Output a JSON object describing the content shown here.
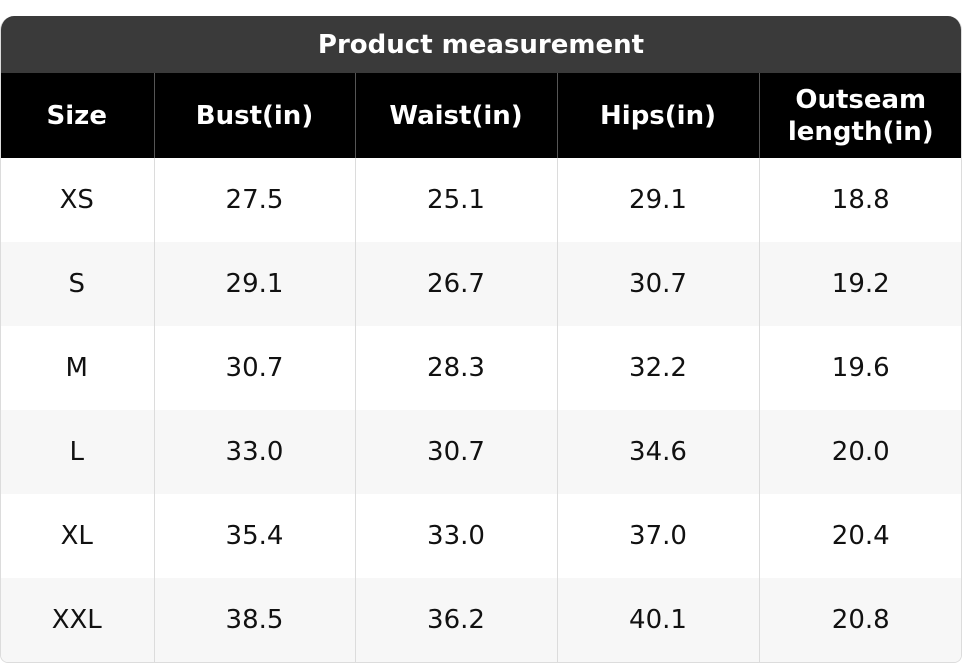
{
  "table": {
    "title": "Product measurement",
    "header": [
      "Size",
      "Bust(in)",
      "Waist(in)",
      "Hips(in)",
      "Outseam length(in)"
    ],
    "rows": [
      [
        "XS",
        "27.5",
        "25.1",
        "29.1",
        "18.8"
      ],
      [
        "S",
        "29.1",
        "26.7",
        "30.7",
        "19.2"
      ],
      [
        "M",
        "30.7",
        "28.3",
        "32.2",
        "19.6"
      ],
      [
        "L",
        "33.0",
        "30.7",
        "34.6",
        "20.0"
      ],
      [
        "XL",
        "35.4",
        "33.0",
        "37.0",
        "20.4"
      ],
      [
        "XXL",
        "38.5",
        "36.2",
        "40.1",
        "20.8"
      ]
    ]
  }
}
